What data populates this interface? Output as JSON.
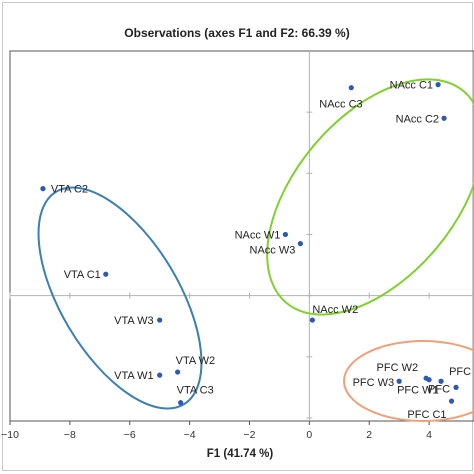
{
  "chart_data": {
    "type": "scatter",
    "title": "Observations (axes F1 and F2: 66.39 %)",
    "xlabel": "F1 (41.74 %)",
    "ylabel": "",
    "xlim": [
      -10,
      5.5
    ],
    "ylim": [
      -4.1,
      8.0
    ],
    "xticks": [
      -10,
      -8,
      -6,
      -4,
      -2,
      0,
      2,
      4
    ],
    "xtick_labels": [
      "−10",
      "−8",
      "−6",
      "−4",
      "−2",
      "0",
      "2",
      "4"
    ],
    "yticks": [
      -4,
      -2,
      0,
      2,
      4,
      6
    ],
    "grid": false,
    "marker_color": "#2e58b8",
    "points": [
      {
        "label": "VTA C2",
        "x": -8.9,
        "y": 3.5
      },
      {
        "label": "VTA C1",
        "x": -6.8,
        "y": 0.7
      },
      {
        "label": "VTA W3",
        "x": -5.0,
        "y": -0.8
      },
      {
        "label": "VTA W1",
        "x": -5.0,
        "y": -2.6
      },
      {
        "label": "VTA W2",
        "x": -4.4,
        "y": -2.5
      },
      {
        "label": "VTA C3",
        "x": -4.3,
        "y": -3.5
      },
      {
        "label": "NAcc C1",
        "x": 4.3,
        "y": 6.9
      },
      {
        "label": "NAcc C3",
        "x": 1.4,
        "y": 6.8
      },
      {
        "label": "NAcc C2",
        "x": 4.5,
        "y": 5.8
      },
      {
        "label": "NAcc W1",
        "x": -0.8,
        "y": 2.0
      },
      {
        "label": "NAcc W3",
        "x": -0.3,
        "y": 1.7
      },
      {
        "label": "NAcc W2",
        "x": 0.1,
        "y": -0.8
      },
      {
        "label": "PFC W2",
        "x": 3.9,
        "y": -2.7
      },
      {
        "label": "PFC W3",
        "x": 3.0,
        "y": -2.8
      },
      {
        "label": "PFC W1",
        "x": 4.0,
        "y": -2.75
      },
      {
        "label": "PFC",
        "x": 4.4,
        "y": -2.8
      },
      {
        "label": "PFC",
        "x": 4.9,
        "y": -3.0
      },
      {
        "label": "PFC C1",
        "x": 4.75,
        "y": -3.45
      }
    ],
    "groups": [
      {
        "name": "VTA",
        "color": "#3b7fb6"
      },
      {
        "name": "NAcc",
        "color": "#7fd12e"
      },
      {
        "name": "PFC",
        "color": "#f0a077"
      }
    ],
    "labels": {
      "title": "Observations (axes F1 and F2: 66.39 %)",
      "xlabel": "F1 (41.74 %)"
    }
  }
}
